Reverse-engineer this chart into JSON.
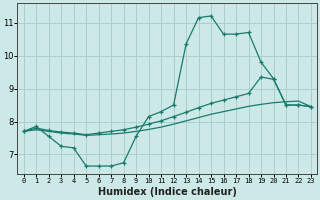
{
  "xlabel": "Humidex (Indice chaleur)",
  "x_values": [
    0,
    1,
    2,
    3,
    4,
    5,
    6,
    7,
    8,
    9,
    10,
    11,
    12,
    13,
    14,
    15,
    16,
    17,
    18,
    19,
    20,
    21,
    22,
    23
  ],
  "line1": [
    7.7,
    7.85,
    7.55,
    7.25,
    7.2,
    6.65,
    6.65,
    6.65,
    6.75,
    7.55,
    8.15,
    8.3,
    8.5,
    10.35,
    11.15,
    11.2,
    10.65,
    10.65,
    10.7,
    9.8,
    9.3,
    8.5,
    8.5,
    8.45
  ],
  "line2": [
    7.7,
    7.8,
    7.73,
    7.68,
    7.65,
    7.6,
    7.65,
    7.7,
    7.75,
    7.83,
    7.92,
    8.02,
    8.15,
    8.28,
    8.42,
    8.55,
    8.65,
    8.75,
    8.85,
    9.35,
    9.28,
    8.5,
    8.5,
    8.45
  ],
  "line3": [
    7.7,
    7.75,
    7.7,
    7.65,
    7.62,
    7.58,
    7.6,
    7.62,
    7.65,
    7.7,
    7.76,
    7.83,
    7.92,
    8.02,
    8.12,
    8.22,
    8.3,
    8.38,
    8.46,
    8.52,
    8.57,
    8.6,
    8.62,
    8.45
  ],
  "line_color": "#1a7a6e",
  "bg_color": "#cce9e8",
  "grid_color": "#aacfcd",
  "ylim": [
    6.4,
    11.6
  ],
  "xlim": [
    -0.5,
    23.5
  ],
  "yticks": [
    7,
    8,
    9,
    10,
    11
  ],
  "xticks": [
    0,
    1,
    2,
    3,
    4,
    5,
    6,
    7,
    8,
    9,
    10,
    11,
    12,
    13,
    14,
    15,
    16,
    17,
    18,
    19,
    20,
    21,
    22,
    23
  ],
  "xlabel_fontsize": 7,
  "ytick_fontsize": 6,
  "xtick_fontsize": 5
}
